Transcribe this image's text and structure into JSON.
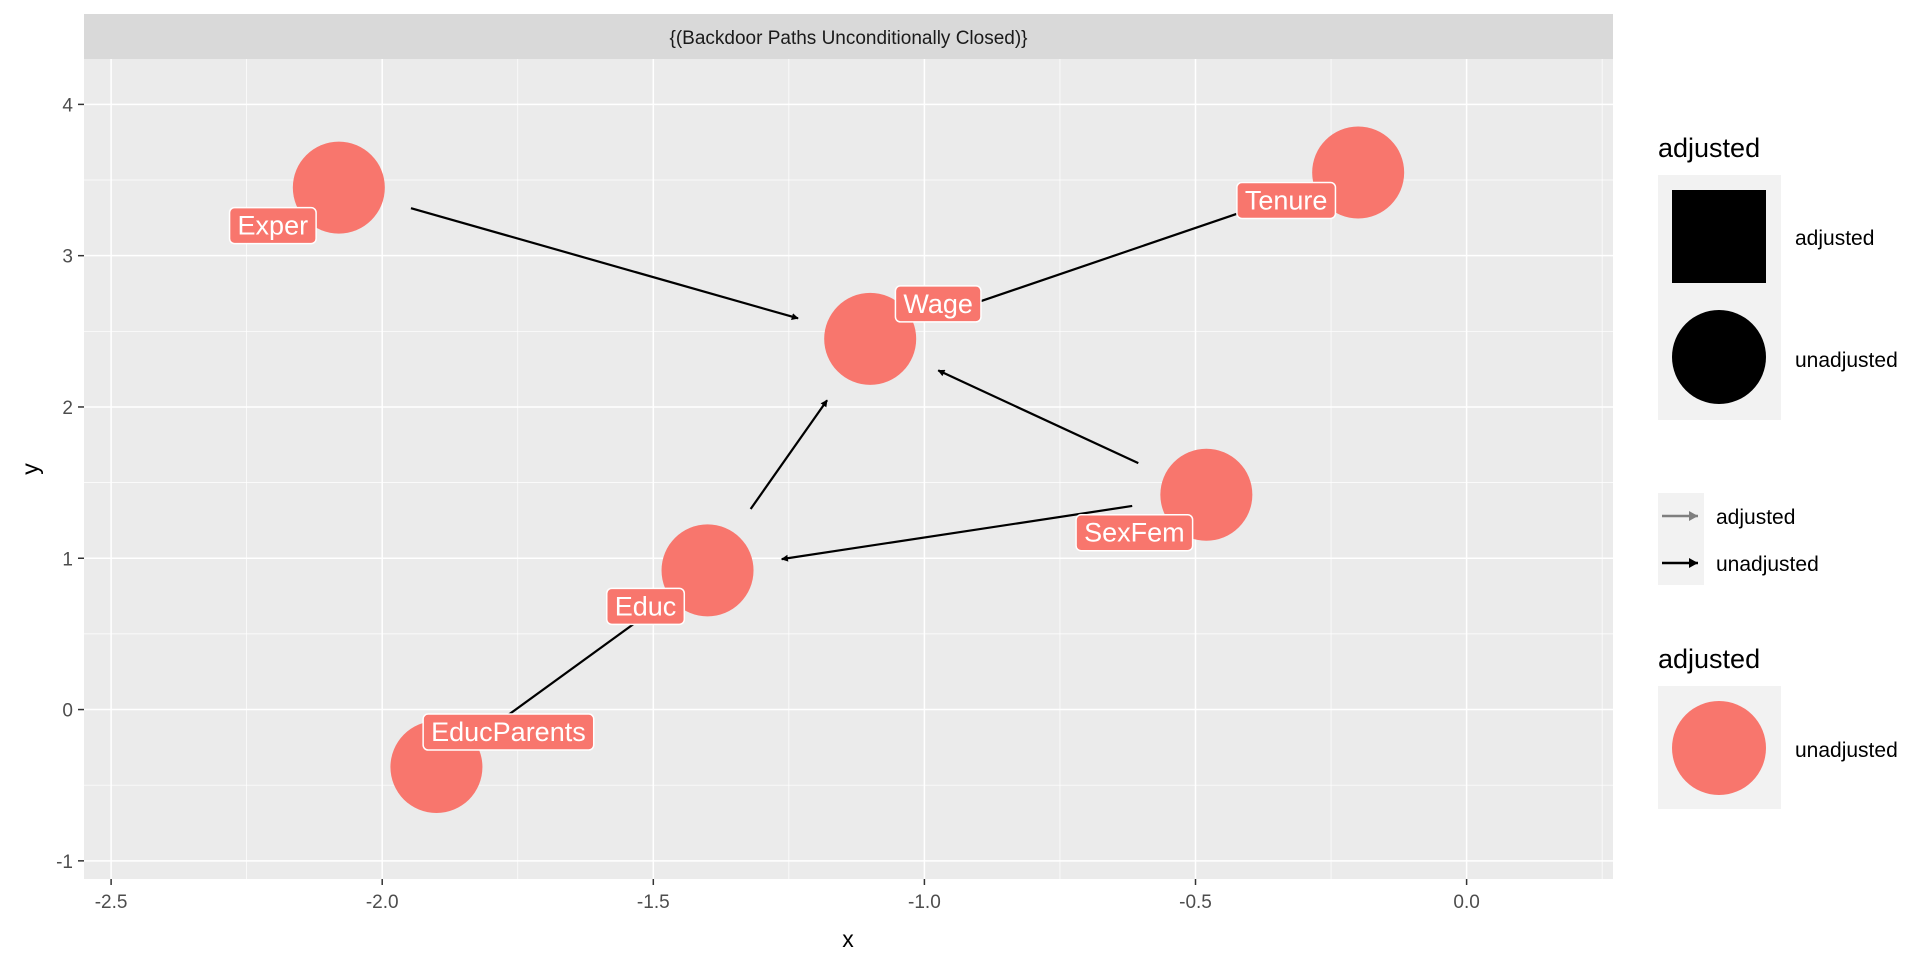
{
  "chart_data": {
    "type": "dag",
    "strip_title": "{(Backdoor Paths Unconditionally Closed)}",
    "xlabel": "x",
    "ylabel": "y",
    "xlim": [
      -2.55,
      0.27
    ],
    "ylim": [
      -1.12,
      4.3
    ],
    "x_ticks": [
      -2.5,
      -2.0,
      -1.5,
      -1.0,
      -0.5,
      0.0
    ],
    "x_tick_labels": [
      "-2.5",
      "-2.0",
      "-1.5",
      "-1.0",
      "-0.5",
      "0.0"
    ],
    "y_ticks": [
      -1,
      0,
      1,
      2,
      3,
      4
    ],
    "y_tick_labels": [
      "-1",
      "0",
      "1",
      "2",
      "3",
      "4"
    ],
    "node_color": "#F8766D",
    "nodes": [
      {
        "name": "Exper",
        "x": -2.08,
        "y": 3.45
      },
      {
        "name": "Tenure",
        "x": -0.2,
        "y": 3.55
      },
      {
        "name": "Wage",
        "x": -1.1,
        "y": 2.45
      },
      {
        "name": "SexFem",
        "x": -0.48,
        "y": 1.42
      },
      {
        "name": "Educ",
        "x": -1.4,
        "y": 0.92
      },
      {
        "name": "EducParents",
        "x": -1.9,
        "y": -0.38
      }
    ],
    "edges": [
      {
        "from": "Exper",
        "to": "Wage"
      },
      {
        "from": "Tenure",
        "to": "Wage"
      },
      {
        "from": "SexFem",
        "to": "Wage"
      },
      {
        "from": "SexFem",
        "to": "Educ"
      },
      {
        "from": "Educ",
        "to": "Wage"
      },
      {
        "from": "EducParents",
        "to": "Educ"
      }
    ],
    "legends": [
      {
        "title": "adjusted",
        "kind": "shape",
        "entries": [
          {
            "label": "adjusted",
            "shape": "square"
          },
          {
            "label": "unadjusted",
            "shape": "circle"
          }
        ]
      },
      {
        "title": "",
        "kind": "arrow",
        "entries": [
          {
            "label": "adjusted",
            "color": "#7f7f7f"
          },
          {
            "label": "unadjusted",
            "color": "#000000"
          }
        ]
      },
      {
        "title": "adjusted",
        "kind": "color",
        "entries": [
          {
            "label": "unadjusted",
            "color": "#F8766D"
          }
        ]
      }
    ]
  }
}
